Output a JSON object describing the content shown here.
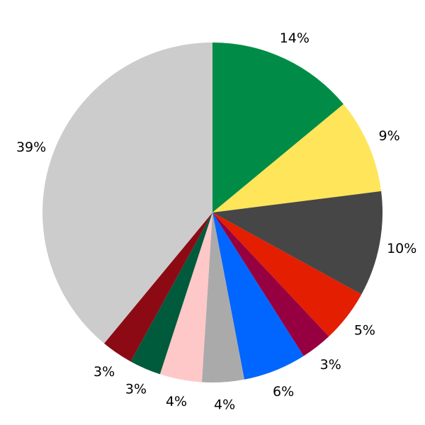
{
  "chart_data": {
    "type": "pie",
    "start": "top",
    "direction": "clockwise",
    "slices": [
      {
        "label": "14%",
        "value": 14,
        "color": "#008c46"
      },
      {
        "label": "9%",
        "value": 9,
        "color": "#ffe55a"
      },
      {
        "label": "10%",
        "value": 10,
        "color": "#464646"
      },
      {
        "label": "5%",
        "value": 5,
        "color": "#e41e00"
      },
      {
        "label": "3%",
        "value": 3,
        "color": "#960040"
      },
      {
        "label": "6%",
        "value": 6,
        "color": "#0066ff"
      },
      {
        "label": "4%",
        "value": 4,
        "color": "#aaaaaa"
      },
      {
        "label": "4%",
        "value": 4,
        "color": "#ffc8c8"
      },
      {
        "label": "3%",
        "value": 3,
        "color": "#005a3c"
      },
      {
        "label": "3%",
        "value": 3,
        "color": "#8c0a14"
      },
      {
        "label": "39%",
        "value": 39,
        "color": "#cccccc"
      }
    ]
  }
}
